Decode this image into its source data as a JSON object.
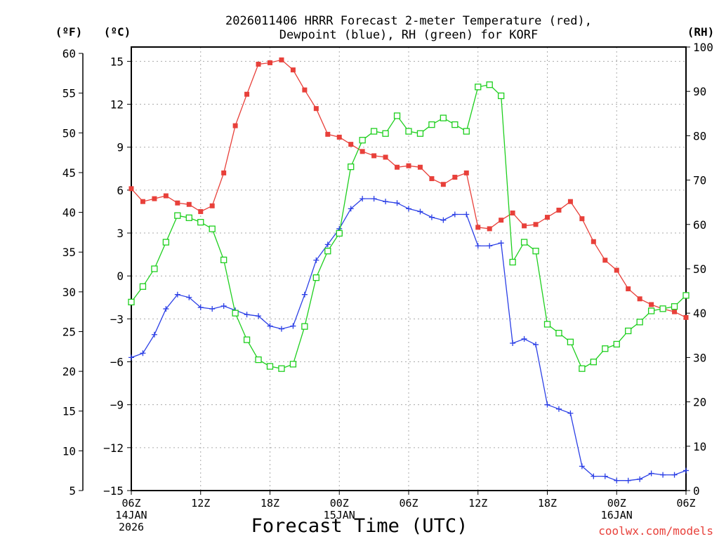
{
  "chart_data": {
    "type": "line",
    "title_line1": "2026011406 HRRR Forecast 2-meter Temperature (red),",
    "title_line2": "Dewpoint (blue), RH (green) for KORF",
    "xlabel": "Forecast Time (UTC)",
    "credit": "coolwx.com/models",
    "units": {
      "left_outer": "(ºF)",
      "left_inner": "(ºC)",
      "right": "(RH)"
    },
    "x_hours_from_start": {
      "range": [
        0,
        48
      ]
    },
    "y_celsius": {
      "range": [
        -15,
        16
      ],
      "ticks": [
        -15,
        -12,
        -9,
        -6,
        -3,
        0,
        3,
        6,
        9,
        12,
        15
      ],
      "tick_labels": [
        "−15",
        "−12",
        "−9",
        "−6",
        "−3",
        "0",
        "3",
        "6",
        "9",
        "12",
        "15"
      ]
    },
    "y_fahrenheit": {
      "ticks": [
        5,
        10,
        15,
        20,
        25,
        30,
        35,
        40,
        45,
        50,
        55,
        60
      ]
    },
    "y_rh": {
      "range": [
        0,
        100
      ],
      "ticks": [
        0,
        10,
        20,
        30,
        40,
        50,
        60,
        70,
        80,
        90,
        100
      ]
    },
    "x_ticks": [
      {
        "hour": 0,
        "label": "06Z",
        "date": "14JAN",
        "year": "2026"
      },
      {
        "hour": 6,
        "label": "12Z"
      },
      {
        "hour": 12,
        "label": "18Z"
      },
      {
        "hour": 18,
        "label": "00Z",
        "date": "15JAN"
      },
      {
        "hour": 24,
        "label": "06Z"
      },
      {
        "hour": 30,
        "label": "12Z"
      },
      {
        "hour": 36,
        "label": "18Z"
      },
      {
        "hour": 42,
        "label": "00Z",
        "date": "16JAN"
      },
      {
        "hour": 48,
        "label": "06Z"
      }
    ],
    "grid": "dotted",
    "series": [
      {
        "name": "Temperature",
        "color": "#e8403a",
        "axis": "celsius",
        "marker": "filled-square",
        "values": [
          6.1,
          5.2,
          5.4,
          5.6,
          5.1,
          5.0,
          4.5,
          4.9,
          7.2,
          10.5,
          12.7,
          14.8,
          14.9,
          15.1,
          14.4,
          13.0,
          11.7,
          9.9,
          9.7,
          9.2,
          8.7,
          8.4,
          8.3,
          7.6,
          7.7,
          7.6,
          6.8,
          6.4,
          6.9,
          7.2,
          3.4,
          3.3,
          3.9,
          4.4,
          3.5,
          3.6,
          4.1,
          4.6,
          5.2,
          4.0,
          2.4,
          1.1,
          0.4,
          -0.9,
          -1.6,
          -2.0,
          -2.3,
          -2.5,
          -2.9
        ]
      },
      {
        "name": "Dewpoint",
        "color": "#2b3fe6",
        "axis": "celsius",
        "marker": "plus",
        "values": [
          -5.7,
          -5.4,
          -4.1,
          -2.3,
          -1.3,
          -1.5,
          -2.2,
          -2.3,
          -2.1,
          -2.4,
          -2.7,
          -2.8,
          -3.5,
          -3.7,
          -3.5,
          -1.3,
          1.1,
          2.2,
          3.3,
          4.7,
          5.4,
          5.4,
          5.2,
          5.1,
          4.7,
          4.5,
          4.1,
          3.9,
          4.3,
          4.3,
          2.1,
          2.1,
          2.3,
          -4.7,
          -4.4,
          -4.8,
          -9.0,
          -9.3,
          -9.6,
          -13.3,
          -14.0,
          -14.0,
          -14.3,
          -14.3,
          -14.2,
          -13.8,
          -13.9,
          -13.9,
          -13.6
        ]
      },
      {
        "name": "RH",
        "color": "#1ecf1e",
        "axis": "rh",
        "marker": "open-square",
        "values": [
          42.5,
          46,
          50,
          56,
          62,
          61.5,
          60.5,
          59,
          52,
          40,
          34,
          29.5,
          28,
          27.5,
          28.5,
          37,
          48,
          54,
          58,
          73,
          79,
          81,
          80.5,
          84.5,
          81,
          80.5,
          82.5,
          84,
          82.5,
          81,
          91,
          91.5,
          89,
          51.5,
          56,
          54,
          37.5,
          35.5,
          33.5,
          27.5,
          29,
          32,
          33,
          36,
          38,
          40.5,
          41,
          41.5,
          44
        ]
      }
    ]
  }
}
